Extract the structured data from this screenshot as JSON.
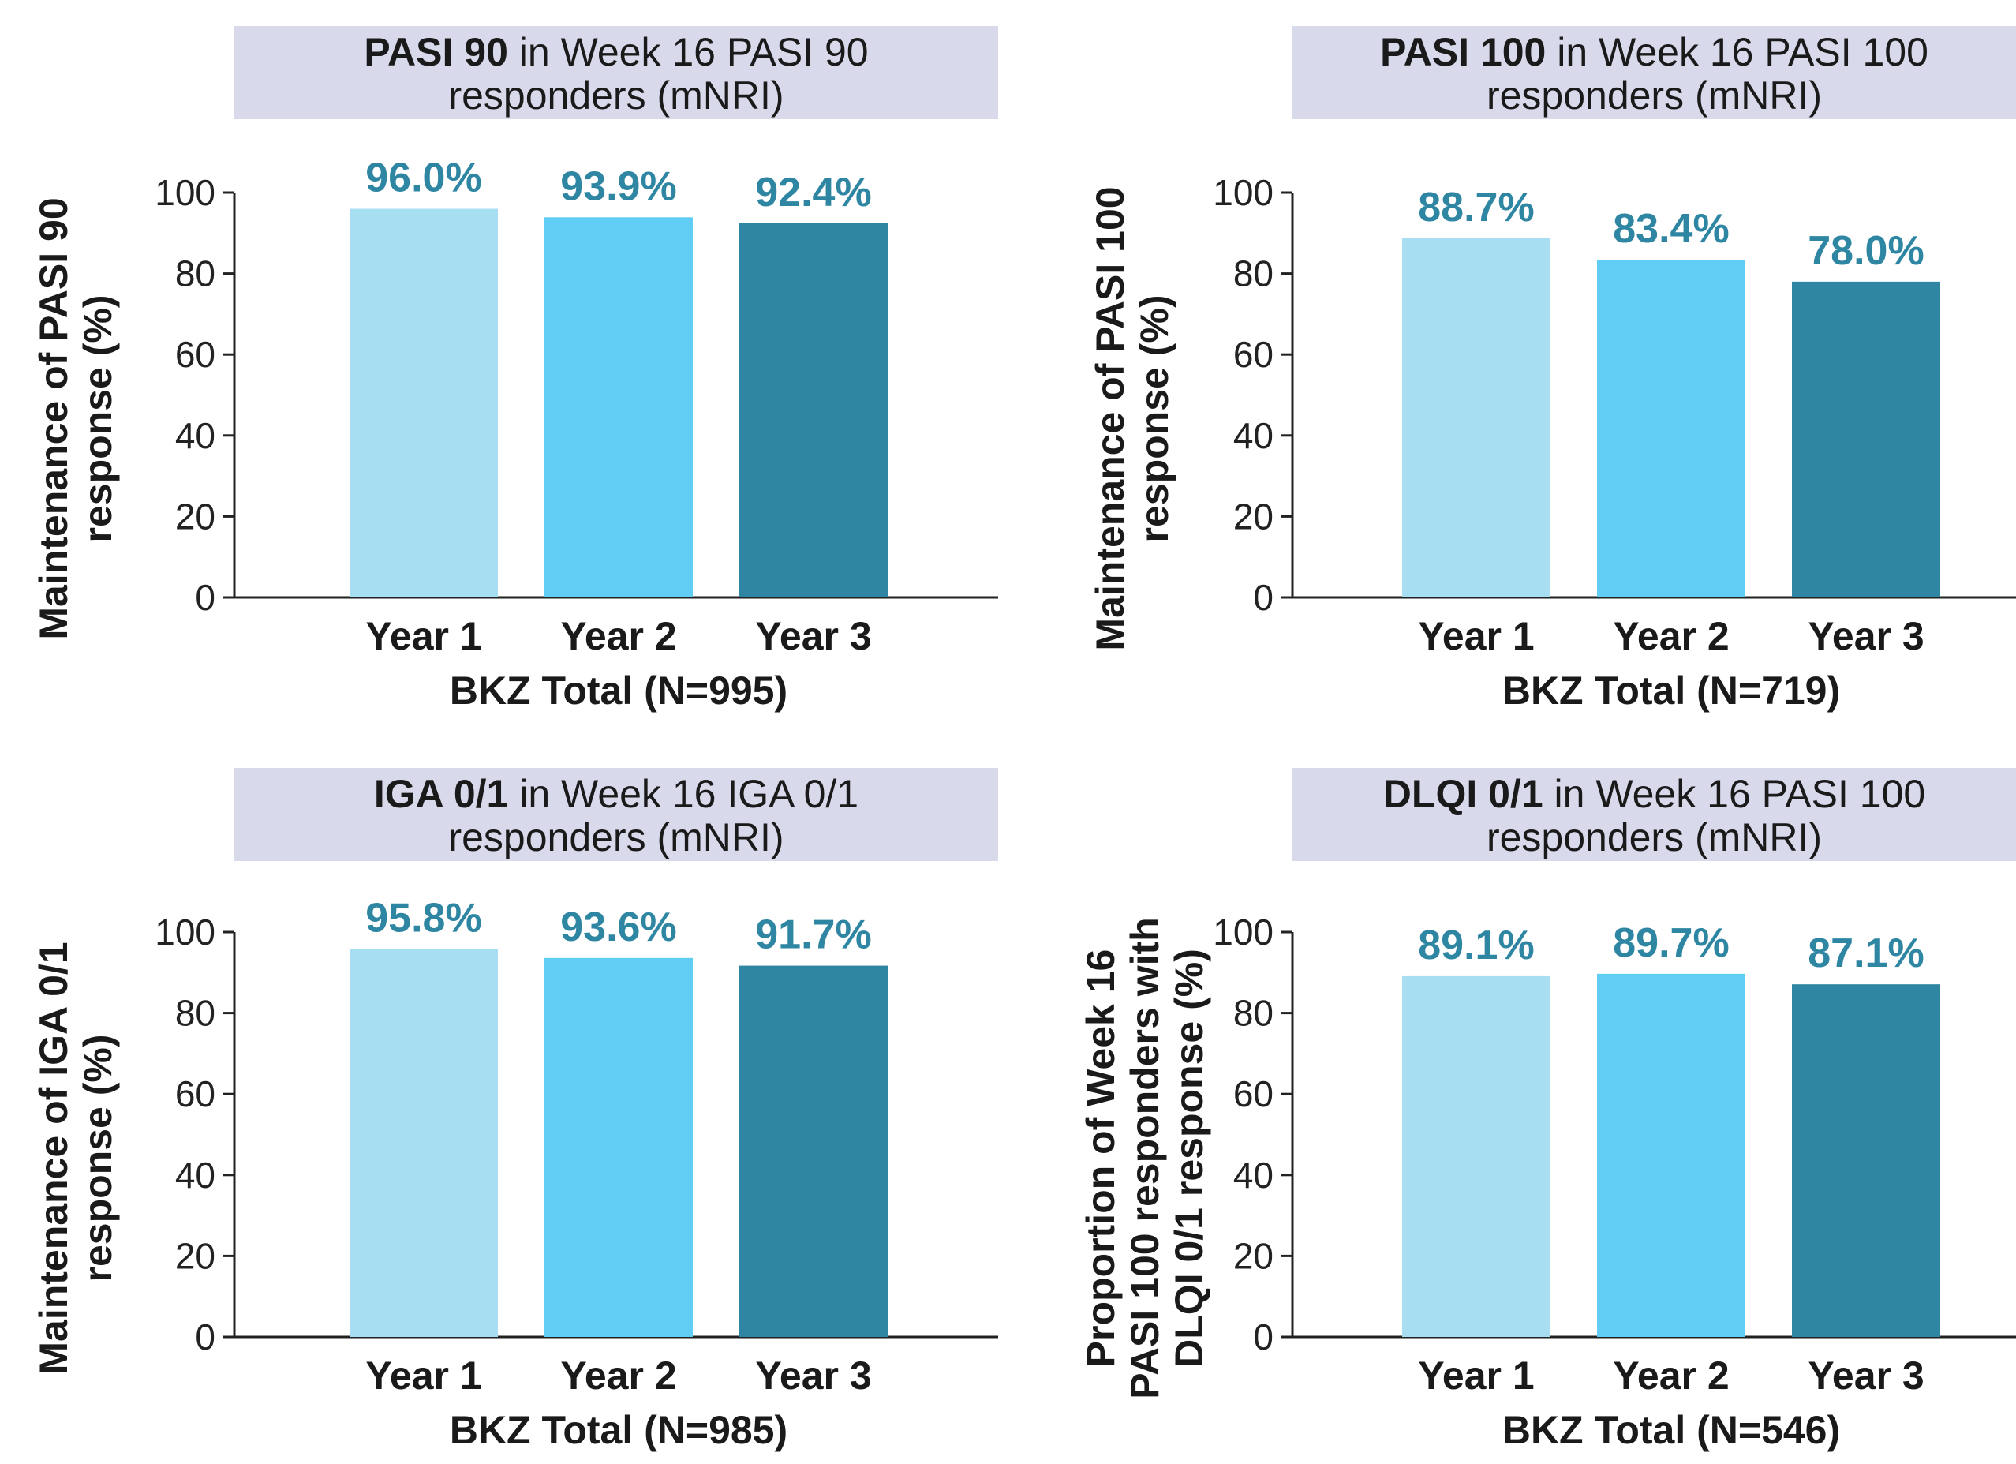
{
  "colors": {
    "title_box": "#d9d9ec",
    "axis": "#222222",
    "label_text": "#2e86a3",
    "bars": [
      "#a8def2",
      "#5fcdf4",
      "#2e86a3"
    ]
  },
  "chart_data": [
    {
      "type": "bar",
      "title_bold": "PASI 90",
      "title_rest": " in Week 16 PASI 90",
      "title_line2": "responders (mNRI)",
      "categories": [
        "Year 1",
        "Year 2",
        "Year 3"
      ],
      "values": [
        96.0,
        93.9,
        92.4
      ],
      "value_labels": [
        "96.0%",
        "93.9%",
        "92.4%"
      ],
      "xlabel": "BKZ Total (N=995)",
      "ylabel_lines": [
        "Maintenance of PASI 90",
        "response  (%)"
      ],
      "ylim": [
        0,
        100
      ],
      "yticks": [
        0,
        20,
        40,
        60,
        80,
        100
      ],
      "grid": false
    },
    {
      "type": "bar",
      "title_bold": "PASI 100",
      "title_rest": " in Week 16 PASI 100",
      "title_line2": "responders (mNRI)",
      "categories": [
        "Year 1",
        "Year 2",
        "Year 3"
      ],
      "values": [
        88.7,
        83.4,
        78.0
      ],
      "value_labels": [
        "88.7%",
        "83.4%",
        "78.0%"
      ],
      "xlabel": "BKZ Total (N=719)",
      "ylabel_lines": [
        "Maintenance of PASI 100",
        "response  (%)"
      ],
      "ylim": [
        0,
        100
      ],
      "yticks": [
        0,
        20,
        40,
        60,
        80,
        100
      ],
      "grid": false
    },
    {
      "type": "bar",
      "title_bold": "IGA 0/1",
      "title_rest": " in Week 16 IGA 0/1",
      "title_line2": "responders (mNRI)",
      "categories": [
        "Year 1",
        "Year 2",
        "Year 3"
      ],
      "values": [
        95.8,
        93.6,
        91.7
      ],
      "value_labels": [
        "95.8%",
        "93.6%",
        "91.7%"
      ],
      "xlabel": "BKZ Total (N=985)",
      "ylabel_lines": [
        "Maintenance of IGA 0/1",
        "response  (%)"
      ],
      "ylim": [
        0,
        100
      ],
      "yticks": [
        0,
        20,
        40,
        60,
        80,
        100
      ],
      "grid": false
    },
    {
      "type": "bar",
      "title_bold": "DLQI 0/1",
      "title_rest": " in Week 16 PASI 100",
      "title_line2": "responders (mNRI)",
      "categories": [
        "Year 1",
        "Year 2",
        "Year 3"
      ],
      "values": [
        89.1,
        89.7,
        87.1
      ],
      "value_labels": [
        "89.1%",
        "89.7%",
        "87.1%"
      ],
      "xlabel": "BKZ Total (N=546)",
      "ylabel_lines": [
        "Proportion of Week 16",
        "PASI 100 responders with",
        "DLQI 0/1 response (%)"
      ],
      "ylim": [
        0,
        100
      ],
      "yticks": [
        0,
        20,
        40,
        60,
        80,
        100
      ],
      "grid": false
    }
  ]
}
